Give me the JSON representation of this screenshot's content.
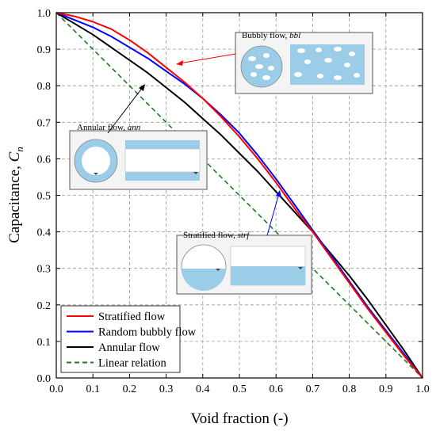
{
  "chart_data": {
    "type": "line",
    "xlabel": "Void fraction (-)",
    "ylabel": {
      "main": "Capacitance, ",
      "var": "C",
      "sub": "n"
    },
    "xlim": [
      0,
      1
    ],
    "ylim": [
      0,
      1
    ],
    "x_ticks": [
      "0.0",
      "0.1",
      "0.2",
      "0.3",
      "0.4",
      "0.5",
      "0.6",
      "0.7",
      "0.8",
      "0.9",
      "1.0"
    ],
    "y_ticks": [
      "0.0",
      "0.1",
      "0.2",
      "0.3",
      "0.4",
      "0.5",
      "0.6",
      "0.7",
      "0.8",
      "0.9",
      "1.0"
    ],
    "grid": true,
    "legend_position": "bottom-left",
    "series": [
      {
        "name": "Stratified flow",
        "color": "#ff0000",
        "dash": "solid",
        "x": [
          0,
          0.05,
          0.1,
          0.15,
          0.2,
          0.25,
          0.3,
          0.35,
          0.4,
          0.45,
          0.5,
          0.55,
          0.6,
          0.65,
          0.7,
          0.75,
          0.8,
          0.85,
          0.9,
          0.95,
          1.0
        ],
        "y": [
          1.0,
          0.99,
          0.975,
          0.955,
          0.925,
          0.89,
          0.85,
          0.81,
          0.765,
          0.715,
          0.66,
          0.6,
          0.535,
          0.465,
          0.4,
          0.33,
          0.26,
          0.19,
          0.125,
          0.06,
          0.0
        ]
      },
      {
        "name": "Random bubbly flow",
        "color": "#0000ff",
        "dash": "solid",
        "x": [
          0,
          0.05,
          0.1,
          0.15,
          0.2,
          0.25,
          0.3,
          0.35,
          0.4,
          0.45,
          0.5,
          0.55,
          0.6,
          0.65,
          0.7,
          0.75,
          0.8,
          0.85,
          0.9,
          0.95,
          1.0
        ],
        "y": [
          1.0,
          0.98,
          0.96,
          0.935,
          0.905,
          0.875,
          0.84,
          0.805,
          0.765,
          0.72,
          0.67,
          0.61,
          0.545,
          0.475,
          0.405,
          0.335,
          0.265,
          0.195,
          0.13,
          0.065,
          0.0
        ]
      },
      {
        "name": "Annular flow",
        "color": "#000000",
        "dash": "solid",
        "x": [
          0,
          0.05,
          0.1,
          0.15,
          0.2,
          0.25,
          0.3,
          0.35,
          0.4,
          0.45,
          0.5,
          0.55,
          0.6,
          0.65,
          0.7,
          0.75,
          0.8,
          0.85,
          0.9,
          0.95,
          1.0
        ],
        "y": [
          1.0,
          0.97,
          0.94,
          0.905,
          0.87,
          0.835,
          0.795,
          0.755,
          0.71,
          0.665,
          0.615,
          0.565,
          0.51,
          0.455,
          0.4,
          0.34,
          0.28,
          0.215,
          0.145,
          0.075,
          0.0
        ]
      },
      {
        "name": "Linear relation",
        "color": "#1f7a1f",
        "dash": "dashed",
        "x": [
          0,
          1
        ],
        "y": [
          1,
          0
        ]
      }
    ],
    "annotations": [
      {
        "id": "bubbly",
        "title_main": "Bubbly flow, ",
        "title_italic": "bbl"
      },
      {
        "id": "annular",
        "title_main": "Annular flow, ",
        "title_italic": "ann"
      },
      {
        "id": "stratified",
        "title_main": "Stratified flow, ",
        "title_italic": "strf"
      }
    ]
  }
}
